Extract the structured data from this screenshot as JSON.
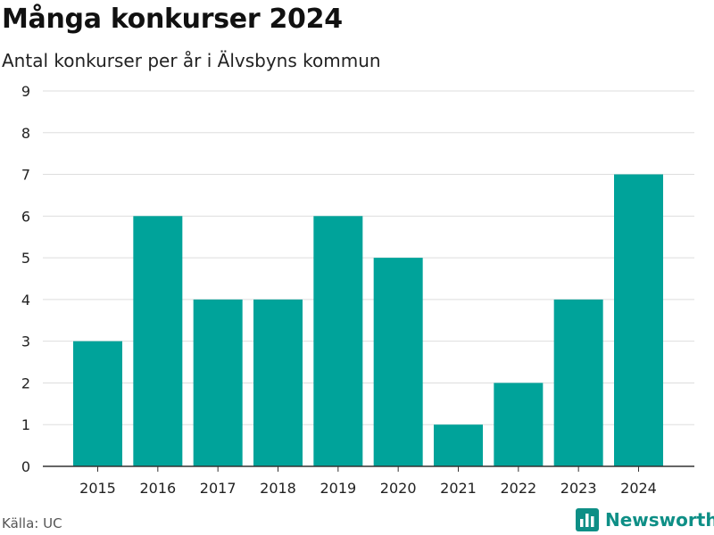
{
  "header": {
    "title": "Många konkurser 2024",
    "subtitle": "Antal konkurser per år i Älvsbyns kommun"
  },
  "footer": {
    "source": "Källa: UC",
    "brand": "Newsworthy",
    "brand_icon": "bar-chart-logo-icon"
  },
  "colors": {
    "bar": "#00a39a",
    "brand": "#0e8f86",
    "grid": "#dddddd",
    "axis": "#333333"
  },
  "chart_data": {
    "type": "bar",
    "title": "Många konkurser 2024",
    "subtitle": "Antal konkurser per år i Älvsbyns kommun",
    "xlabel": "",
    "ylabel": "",
    "categories": [
      "2015",
      "2016",
      "2017",
      "2018",
      "2019",
      "2020",
      "2021",
      "2022",
      "2023",
      "2024"
    ],
    "values": [
      3,
      6,
      4,
      4,
      6,
      5,
      1,
      2,
      4,
      7
    ],
    "ylim": [
      0,
      9
    ],
    "yticks": [
      0,
      1,
      2,
      3,
      4,
      5,
      6,
      7,
      8,
      9
    ],
    "grid": true,
    "legend": "none"
  }
}
